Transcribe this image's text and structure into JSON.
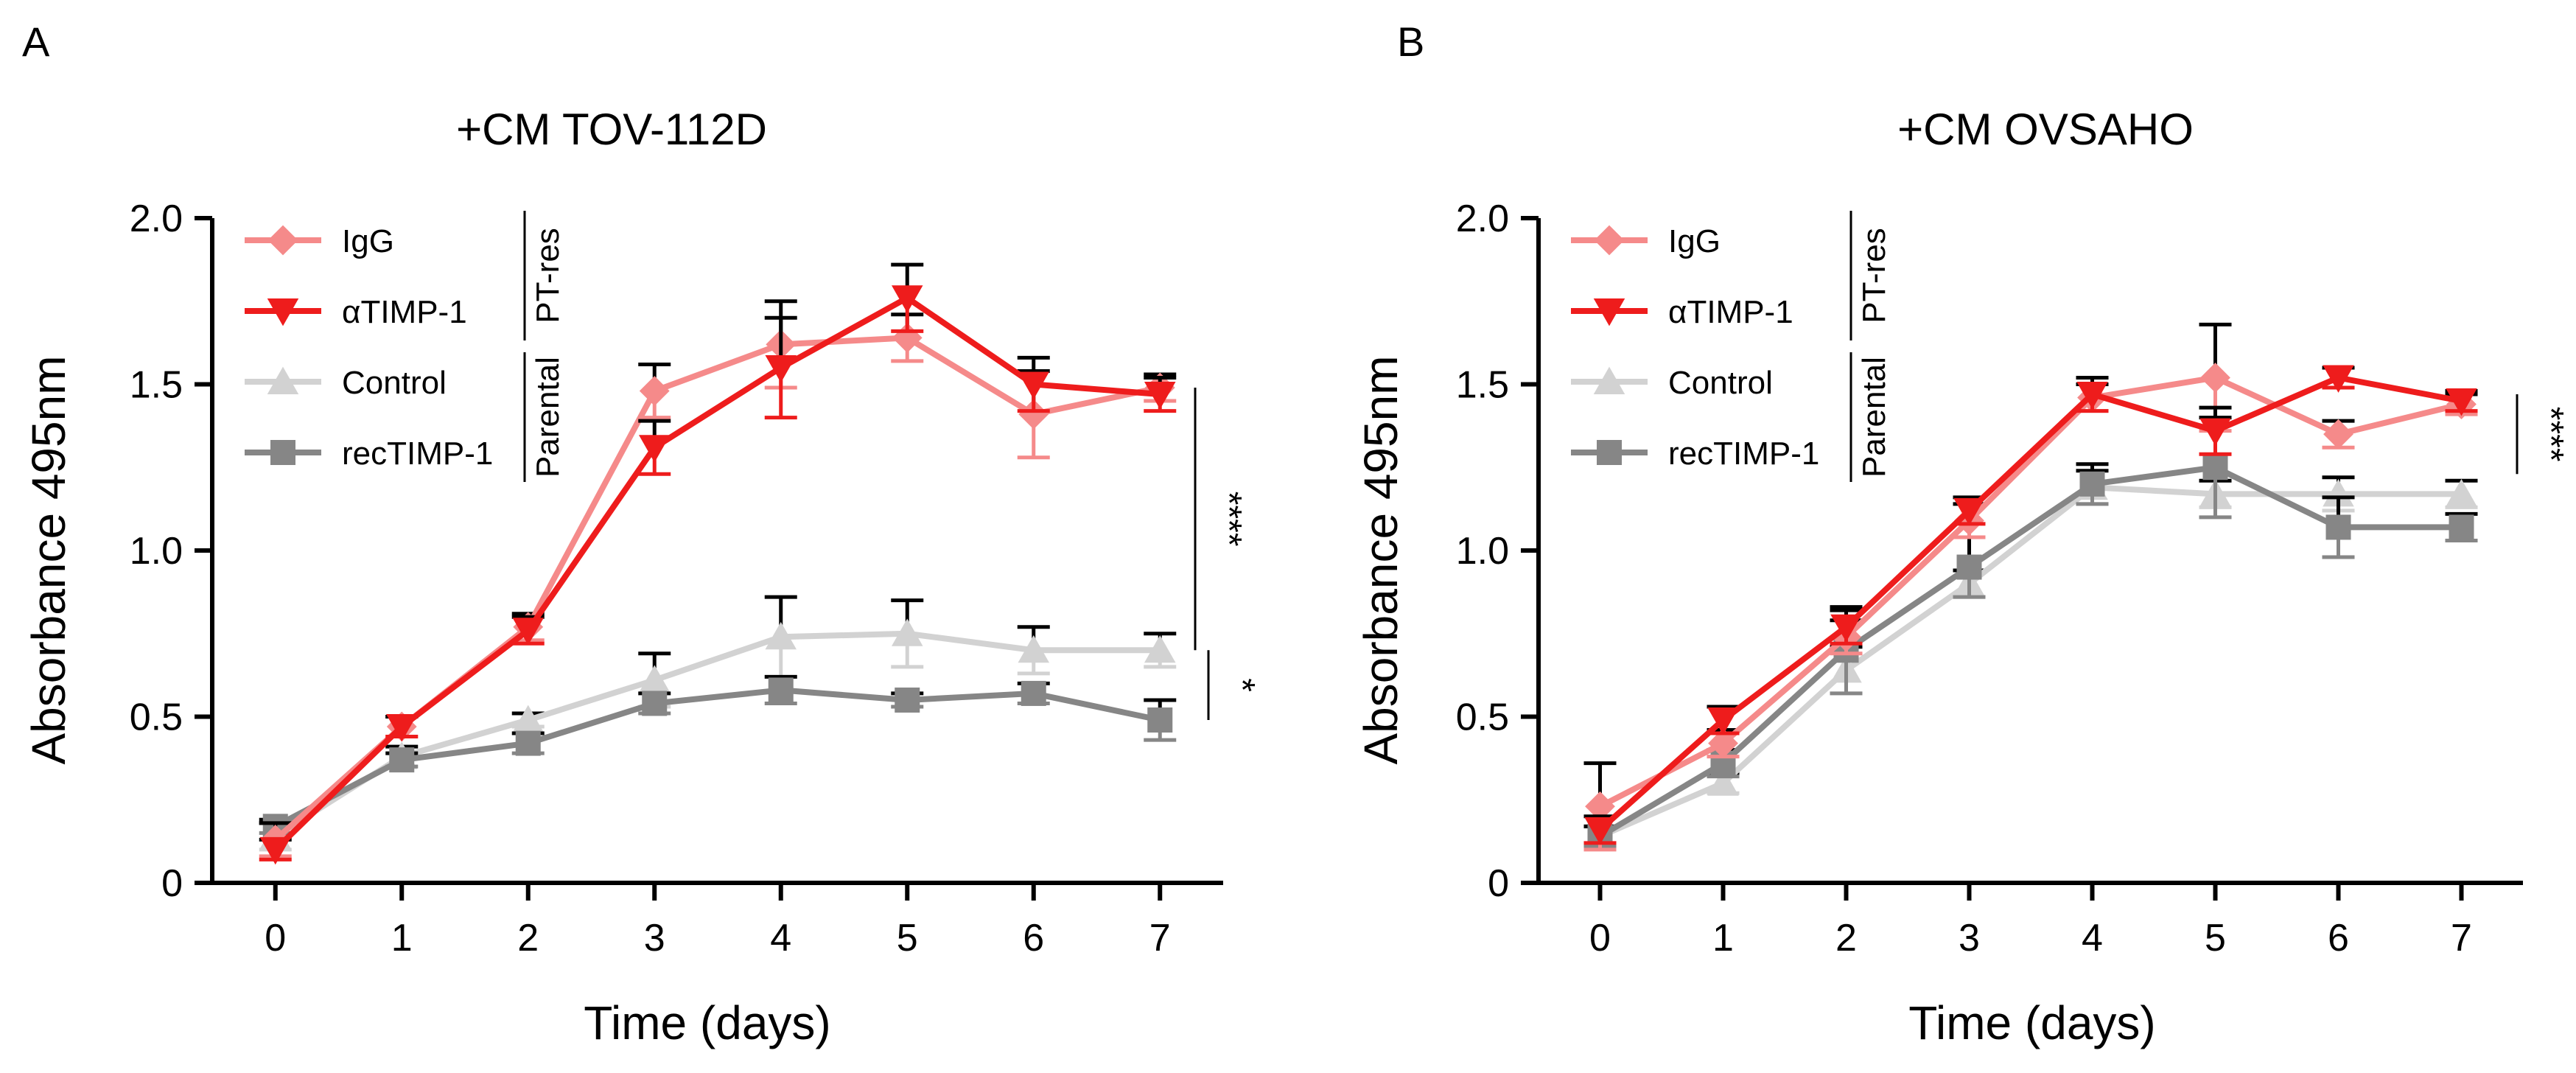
{
  "figure": {
    "panel_a_letter": "A",
    "panel_b_letter": "B"
  },
  "colors": {
    "IgG": "#f58a8a",
    "aTIMP1": "#ee1c1c",
    "Control": "#d2d2d2",
    "recTIMP1": "#868686",
    "axis": "#000000"
  },
  "chart_data": [
    {
      "type": "line",
      "title": "+CM TOV-112D",
      "xlabel": "Time (days)",
      "ylabel": "Absorbance 495nm",
      "x": [
        0,
        1,
        2,
        3,
        4,
        5,
        6,
        7
      ],
      "xticks": [
        "0",
        "1",
        "2",
        "3",
        "4",
        "5",
        "6",
        "7"
      ],
      "yticks": [
        "0",
        "0.5",
        "1.0",
        "1.5",
        "2.0"
      ],
      "ylim": [
        0,
        2.0
      ],
      "xlim": [
        -0.5,
        7.5
      ],
      "legend_position": "top-left",
      "groups": [
        {
          "label": "PT-res",
          "series": [
            "IgG",
            "αTIMP-1"
          ]
        },
        {
          "label": "Parental",
          "series": [
            "Control",
            "recTIMP-1"
          ]
        }
      ],
      "series": [
        {
          "name": "IgG",
          "key": "IgG",
          "marker": "diamond",
          "values": [
            0.13,
            0.47,
            0.77,
            1.48,
            1.62,
            1.64,
            1.41,
            1.49
          ],
          "errors": [
            0.05,
            0.03,
            0.04,
            0.08,
            0.13,
            0.07,
            0.13,
            0.04
          ]
        },
        {
          "name": "αTIMP-1",
          "key": "aTIMP1",
          "marker": "triangle-down",
          "values": [
            0.1,
            0.47,
            0.76,
            1.31,
            1.55,
            1.76,
            1.5,
            1.47
          ],
          "errors": [
            0.03,
            0.03,
            0.04,
            0.08,
            0.15,
            0.1,
            0.08,
            0.05
          ]
        },
        {
          "name": "Control",
          "key": "Control",
          "marker": "triangle-up",
          "values": [
            0.14,
            0.38,
            0.49,
            0.61,
            0.74,
            0.75,
            0.7,
            0.7
          ],
          "errors": [
            0.04,
            0.03,
            0.02,
            0.08,
            0.12,
            0.1,
            0.07,
            0.05
          ]
        },
        {
          "name": "recTIMP-1",
          "key": "recTIMP1",
          "marker": "square",
          "values": [
            0.17,
            0.37,
            0.42,
            0.54,
            0.58,
            0.55,
            0.57,
            0.49
          ],
          "errors": [
            0.02,
            0.02,
            0.03,
            0.03,
            0.04,
            0.02,
            0.03,
            0.06
          ]
        }
      ],
      "significance": [
        {
          "label": "****",
          "from": 1.49,
          "to": 0.7
        },
        {
          "label": "*",
          "from": 0.7,
          "to": 0.49
        }
      ]
    },
    {
      "type": "line",
      "title": "+CM OVSAHO",
      "xlabel": "Time (days)",
      "ylabel": "Absorbance 495nm",
      "x": [
        0,
        1,
        2,
        3,
        4,
        5,
        6,
        7
      ],
      "xticks": [
        "0",
        "1",
        "2",
        "3",
        "4",
        "5",
        "6",
        "7"
      ],
      "yticks": [
        "0",
        "0.5",
        "1.0",
        "1.5",
        "2.0"
      ],
      "ylim": [
        0,
        2.0
      ],
      "xlim": [
        -0.5,
        7.5
      ],
      "legend_position": "top-left",
      "groups": [
        {
          "label": "PT-res",
          "series": [
            "IgG",
            "αTIMP-1"
          ]
        },
        {
          "label": "Parental",
          "series": [
            "Control",
            "recTIMP-1"
          ]
        }
      ],
      "series": [
        {
          "name": "IgG",
          "key": "IgG",
          "marker": "diamond",
          "values": [
            0.23,
            0.42,
            0.74,
            1.09,
            1.46,
            1.52,
            1.35,
            1.44
          ],
          "errors": [
            0.13,
            0.04,
            0.05,
            0.05,
            0.04,
            0.16,
            0.04,
            0.03
          ]
        },
        {
          "name": "αTIMP-1",
          "key": "aTIMP1",
          "marker": "triangle-down",
          "values": [
            0.16,
            0.49,
            0.77,
            1.12,
            1.47,
            1.36,
            1.52,
            1.45
          ],
          "errors": [
            0.04,
            0.04,
            0.05,
            0.04,
            0.05,
            0.07,
            0.03,
            0.03
          ]
        },
        {
          "name": "Control",
          "key": "Control",
          "marker": "triangle-up",
          "values": [
            0.14,
            0.3,
            0.64,
            0.9,
            1.19,
            1.17,
            1.17,
            1.17
          ],
          "errors": [
            0.03,
            0.03,
            0.07,
            0.04,
            0.05,
            0.04,
            0.05,
            0.04
          ]
        },
        {
          "name": "recTIMP-1",
          "key": "recTIMP1",
          "marker": "square",
          "values": [
            0.14,
            0.36,
            0.7,
            0.95,
            1.2,
            1.25,
            1.07,
            1.07
          ],
          "errors": [
            0.03,
            0.04,
            0.13,
            0.09,
            0.06,
            0.15,
            0.09,
            0.04
          ]
        }
      ],
      "significance": [
        {
          "label": "****",
          "from": 1.47,
          "to": 1.23
        }
      ]
    }
  ]
}
